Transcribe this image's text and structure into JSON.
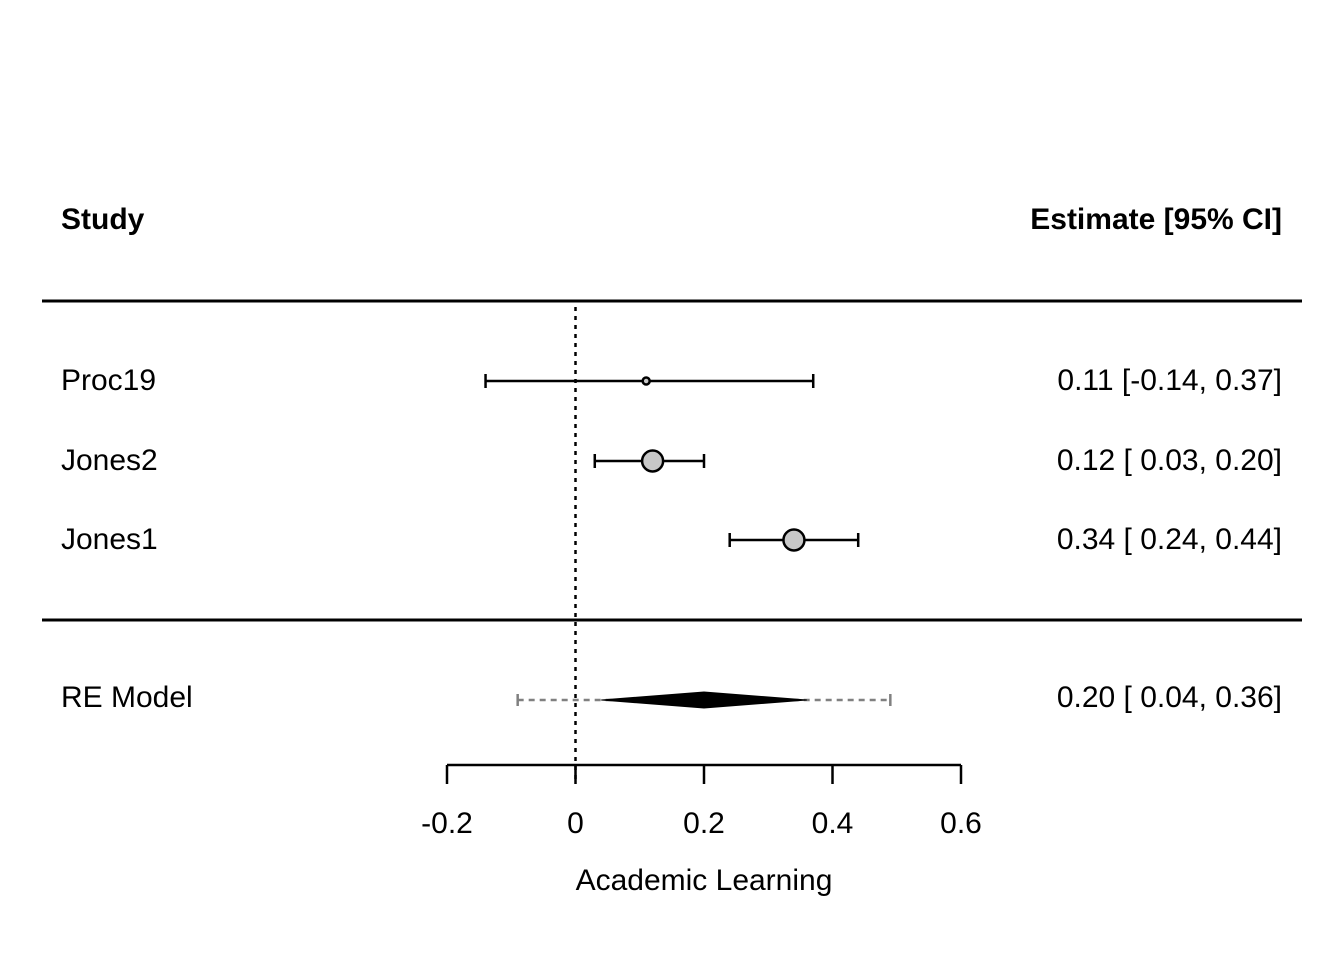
{
  "chart_data": {
    "type": "forest",
    "header_left": "Study",
    "header_right": "Estimate [95% CI]",
    "xlabel": "Academic Learning",
    "xlim": [
      -0.2,
      0.6
    ],
    "ticks": [
      -0.2,
      0,
      0.2,
      0.4,
      0.6
    ],
    "tick_labels": [
      "-0.2",
      "0",
      "0.2",
      "0.4",
      "0.6"
    ],
    "reference_line": 0,
    "studies": [
      {
        "name": "Proc19",
        "estimate": 0.11,
        "ci_lower": -0.14,
        "ci_upper": 0.37,
        "label": "0.11 [-0.14, 0.37]",
        "weight": "small"
      },
      {
        "name": "Jones2",
        "estimate": 0.12,
        "ci_lower": 0.03,
        "ci_upper": 0.2,
        "label": "0.12 [ 0.03, 0.20]",
        "weight": "large"
      },
      {
        "name": "Jones1",
        "estimate": 0.34,
        "ci_lower": 0.24,
        "ci_upper": 0.44,
        "label": "0.34 [ 0.24, 0.44]",
        "weight": "large"
      }
    ],
    "summary": {
      "name": "RE Model",
      "estimate": 0.2,
      "ci_lower": 0.04,
      "ci_upper": 0.36,
      "pi_lower": -0.09,
      "pi_upper": 0.49,
      "label": "0.20 [ 0.04, 0.36]"
    },
    "colors": {
      "point_fill": "#c8c8c8",
      "line": "#000000",
      "prediction_interval": "#808080"
    }
  }
}
